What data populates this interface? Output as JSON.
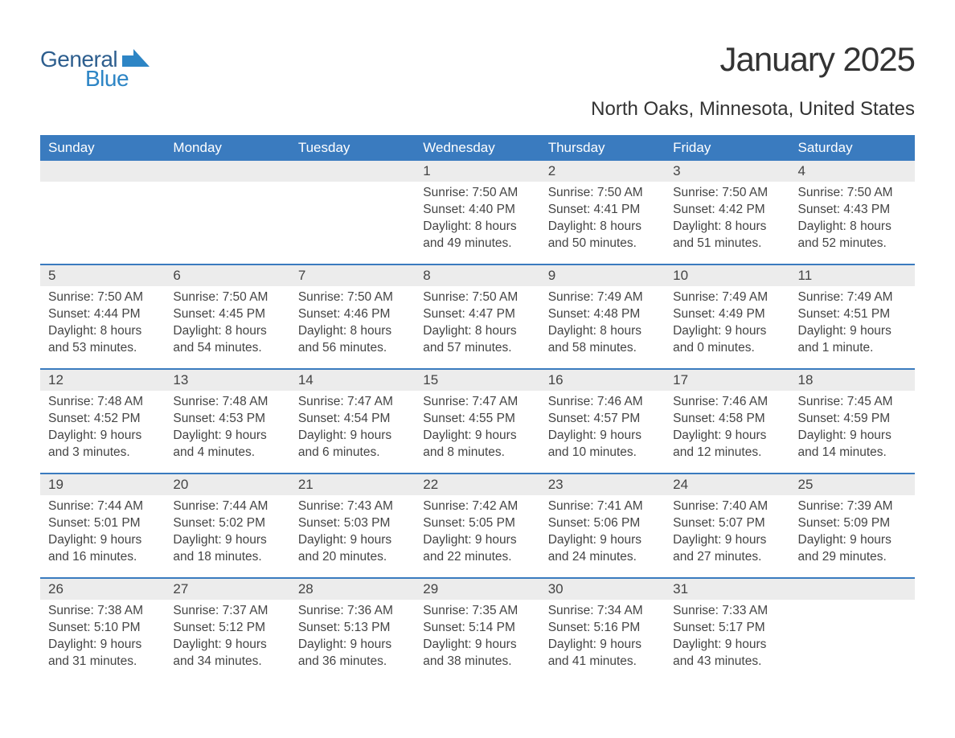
{
  "colors": {
    "header_bg": "#3a7bbf",
    "header_text": "#ffffff",
    "daynum_bg": "#ececec",
    "row_top_border": "#3a7bbf",
    "text_primary": "#333333",
    "text_secondary": "#444444",
    "logo_general": "#2d5e8e",
    "logo_blue": "#2d85c5",
    "logo_icon": "#2d85c5",
    "page_bg": "#ffffff"
  },
  "logo": {
    "line1": "General",
    "line2": "Blue"
  },
  "title": "January 2025",
  "subtitle": "North Oaks, Minnesota, United States",
  "day_headers": [
    "Sunday",
    "Monday",
    "Tuesday",
    "Wednesday",
    "Thursday",
    "Friday",
    "Saturday"
  ],
  "weeks": [
    [
      {
        "empty": true
      },
      {
        "empty": true
      },
      {
        "empty": true
      },
      {
        "num": "1",
        "sunrise": "Sunrise: 7:50 AM",
        "sunset": "Sunset: 4:40 PM",
        "daylight1": "Daylight: 8 hours",
        "daylight2": "and 49 minutes."
      },
      {
        "num": "2",
        "sunrise": "Sunrise: 7:50 AM",
        "sunset": "Sunset: 4:41 PM",
        "daylight1": "Daylight: 8 hours",
        "daylight2": "and 50 minutes."
      },
      {
        "num": "3",
        "sunrise": "Sunrise: 7:50 AM",
        "sunset": "Sunset: 4:42 PM",
        "daylight1": "Daylight: 8 hours",
        "daylight2": "and 51 minutes."
      },
      {
        "num": "4",
        "sunrise": "Sunrise: 7:50 AM",
        "sunset": "Sunset: 4:43 PM",
        "daylight1": "Daylight: 8 hours",
        "daylight2": "and 52 minutes."
      }
    ],
    [
      {
        "num": "5",
        "sunrise": "Sunrise: 7:50 AM",
        "sunset": "Sunset: 4:44 PM",
        "daylight1": "Daylight: 8 hours",
        "daylight2": "and 53 minutes."
      },
      {
        "num": "6",
        "sunrise": "Sunrise: 7:50 AM",
        "sunset": "Sunset: 4:45 PM",
        "daylight1": "Daylight: 8 hours",
        "daylight2": "and 54 minutes."
      },
      {
        "num": "7",
        "sunrise": "Sunrise: 7:50 AM",
        "sunset": "Sunset: 4:46 PM",
        "daylight1": "Daylight: 8 hours",
        "daylight2": "and 56 minutes."
      },
      {
        "num": "8",
        "sunrise": "Sunrise: 7:50 AM",
        "sunset": "Sunset: 4:47 PM",
        "daylight1": "Daylight: 8 hours",
        "daylight2": "and 57 minutes."
      },
      {
        "num": "9",
        "sunrise": "Sunrise: 7:49 AM",
        "sunset": "Sunset: 4:48 PM",
        "daylight1": "Daylight: 8 hours",
        "daylight2": "and 58 minutes."
      },
      {
        "num": "10",
        "sunrise": "Sunrise: 7:49 AM",
        "sunset": "Sunset: 4:49 PM",
        "daylight1": "Daylight: 9 hours",
        "daylight2": "and 0 minutes."
      },
      {
        "num": "11",
        "sunrise": "Sunrise: 7:49 AM",
        "sunset": "Sunset: 4:51 PM",
        "daylight1": "Daylight: 9 hours",
        "daylight2": "and 1 minute."
      }
    ],
    [
      {
        "num": "12",
        "sunrise": "Sunrise: 7:48 AM",
        "sunset": "Sunset: 4:52 PM",
        "daylight1": "Daylight: 9 hours",
        "daylight2": "and 3 minutes."
      },
      {
        "num": "13",
        "sunrise": "Sunrise: 7:48 AM",
        "sunset": "Sunset: 4:53 PM",
        "daylight1": "Daylight: 9 hours",
        "daylight2": "and 4 minutes."
      },
      {
        "num": "14",
        "sunrise": "Sunrise: 7:47 AM",
        "sunset": "Sunset: 4:54 PM",
        "daylight1": "Daylight: 9 hours",
        "daylight2": "and 6 minutes."
      },
      {
        "num": "15",
        "sunrise": "Sunrise: 7:47 AM",
        "sunset": "Sunset: 4:55 PM",
        "daylight1": "Daylight: 9 hours",
        "daylight2": "and 8 minutes."
      },
      {
        "num": "16",
        "sunrise": "Sunrise: 7:46 AM",
        "sunset": "Sunset: 4:57 PM",
        "daylight1": "Daylight: 9 hours",
        "daylight2": "and 10 minutes."
      },
      {
        "num": "17",
        "sunrise": "Sunrise: 7:46 AM",
        "sunset": "Sunset: 4:58 PM",
        "daylight1": "Daylight: 9 hours",
        "daylight2": "and 12 minutes."
      },
      {
        "num": "18",
        "sunrise": "Sunrise: 7:45 AM",
        "sunset": "Sunset: 4:59 PM",
        "daylight1": "Daylight: 9 hours",
        "daylight2": "and 14 minutes."
      }
    ],
    [
      {
        "num": "19",
        "sunrise": "Sunrise: 7:44 AM",
        "sunset": "Sunset: 5:01 PM",
        "daylight1": "Daylight: 9 hours",
        "daylight2": "and 16 minutes."
      },
      {
        "num": "20",
        "sunrise": "Sunrise: 7:44 AM",
        "sunset": "Sunset: 5:02 PM",
        "daylight1": "Daylight: 9 hours",
        "daylight2": "and 18 minutes."
      },
      {
        "num": "21",
        "sunrise": "Sunrise: 7:43 AM",
        "sunset": "Sunset: 5:03 PM",
        "daylight1": "Daylight: 9 hours",
        "daylight2": "and 20 minutes."
      },
      {
        "num": "22",
        "sunrise": "Sunrise: 7:42 AM",
        "sunset": "Sunset: 5:05 PM",
        "daylight1": "Daylight: 9 hours",
        "daylight2": "and 22 minutes."
      },
      {
        "num": "23",
        "sunrise": "Sunrise: 7:41 AM",
        "sunset": "Sunset: 5:06 PM",
        "daylight1": "Daylight: 9 hours",
        "daylight2": "and 24 minutes."
      },
      {
        "num": "24",
        "sunrise": "Sunrise: 7:40 AM",
        "sunset": "Sunset: 5:07 PM",
        "daylight1": "Daylight: 9 hours",
        "daylight2": "and 27 minutes."
      },
      {
        "num": "25",
        "sunrise": "Sunrise: 7:39 AM",
        "sunset": "Sunset: 5:09 PM",
        "daylight1": "Daylight: 9 hours",
        "daylight2": "and 29 minutes."
      }
    ],
    [
      {
        "num": "26",
        "sunrise": "Sunrise: 7:38 AM",
        "sunset": "Sunset: 5:10 PM",
        "daylight1": "Daylight: 9 hours",
        "daylight2": "and 31 minutes."
      },
      {
        "num": "27",
        "sunrise": "Sunrise: 7:37 AM",
        "sunset": "Sunset: 5:12 PM",
        "daylight1": "Daylight: 9 hours",
        "daylight2": "and 34 minutes."
      },
      {
        "num": "28",
        "sunrise": "Sunrise: 7:36 AM",
        "sunset": "Sunset: 5:13 PM",
        "daylight1": "Daylight: 9 hours",
        "daylight2": "and 36 minutes."
      },
      {
        "num": "29",
        "sunrise": "Sunrise: 7:35 AM",
        "sunset": "Sunset: 5:14 PM",
        "daylight1": "Daylight: 9 hours",
        "daylight2": "and 38 minutes."
      },
      {
        "num": "30",
        "sunrise": "Sunrise: 7:34 AM",
        "sunset": "Sunset: 5:16 PM",
        "daylight1": "Daylight: 9 hours",
        "daylight2": "and 41 minutes."
      },
      {
        "num": "31",
        "sunrise": "Sunrise: 7:33 AM",
        "sunset": "Sunset: 5:17 PM",
        "daylight1": "Daylight: 9 hours",
        "daylight2": "and 43 minutes."
      },
      {
        "empty": true
      }
    ]
  ]
}
